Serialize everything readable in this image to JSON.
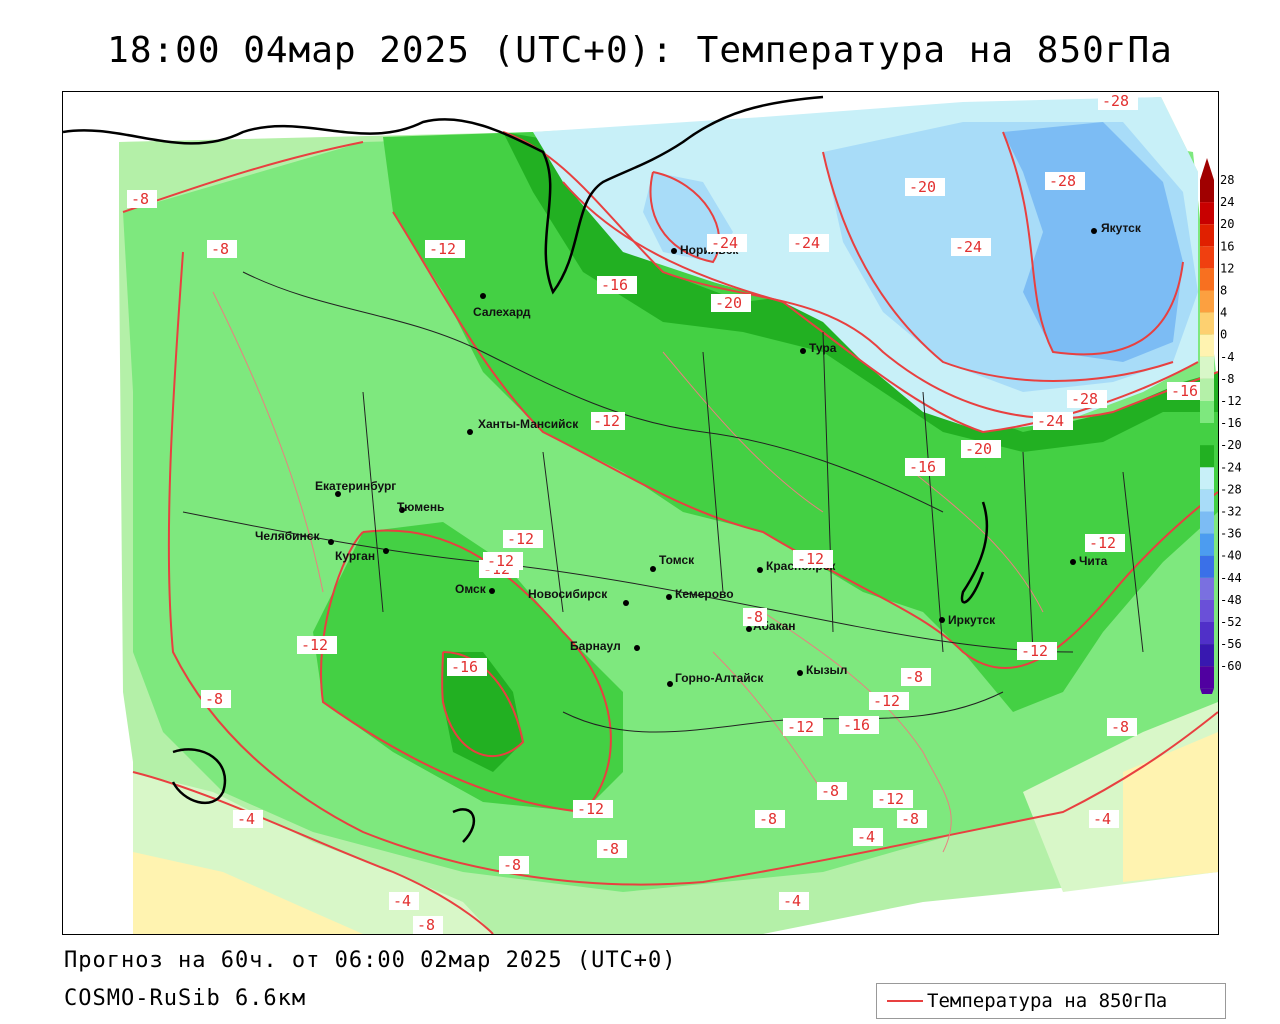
{
  "title": "18:00 04мар 2025 (UTC+0): Температура на 850гПа",
  "footer": {
    "forecast": "Прогноз на 60ч. от 06:00 02мар 2025 (UTC+0)",
    "model": "COSMO-RuSib 6.6км"
  },
  "legend": {
    "label": "Температура на 850гПа",
    "line_color": "#e84040"
  },
  "colorbar": {
    "ticks": [
      "28",
      "24",
      "20",
      "16",
      "12",
      "8",
      "4",
      "0",
      "-4",
      "-8",
      "-12",
      "-16",
      "-20",
      "-24",
      "-28",
      "-32",
      "-36",
      "-40",
      "-44",
      "-48",
      "-52",
      "-56",
      "-60"
    ],
    "colors": [
      "#a00000",
      "#c80000",
      "#e02000",
      "#f04010",
      "#f87020",
      "#fca040",
      "#fdd070",
      "#fff3b0",
      "#d8f7c8",
      "#b4f0a8",
      "#7ee87e",
      "#44d044",
      "#22b022",
      "#c8f0f8",
      "#a8dcf8",
      "#7cbcf4",
      "#4c9cf0",
      "#3a70e8",
      "#7a70e0",
      "#6a50d8",
      "#5030c8",
      "#3818b0",
      "#5000a0"
    ]
  },
  "cities": [
    {
      "name": "Норильск"
    },
    {
      "name": "Якутск"
    },
    {
      "name": "Салехард"
    },
    {
      "name": "Тура"
    },
    {
      "name": "Ханты-Мансийск"
    },
    {
      "name": "Екатеринбург"
    },
    {
      "name": "Тюмень"
    },
    {
      "name": "Челябинск"
    },
    {
      "name": "Курган"
    },
    {
      "name": "Омск"
    },
    {
      "name": "Новосибирск"
    },
    {
      "name": "Томск"
    },
    {
      "name": "Кемерово"
    },
    {
      "name": "Красноярск"
    },
    {
      "name": "Абакан"
    },
    {
      "name": "Барнаул"
    },
    {
      "name": "Горно-Алтайск"
    },
    {
      "name": "Кызыл"
    },
    {
      "name": "Иркутск"
    },
    {
      "name": "Чита"
    }
  ],
  "isotherm_labels": [
    "-28",
    "-28",
    "-20",
    "-24",
    "-24",
    "-24",
    "-20",
    "-16",
    "-12",
    "-8",
    "-8",
    "-12",
    "-28",
    "-16",
    "-20",
    "-16",
    "-24",
    "-12",
    "-12",
    "-12",
    "-12",
    "-12",
    "-12",
    "-16",
    "-8",
    "-12",
    "-12",
    "-16",
    "-12",
    "-8",
    "-8",
    "-12",
    "-4",
    "-8",
    "-8",
    "-4",
    "-8",
    "-8",
    "-4",
    "-4",
    "-8",
    "-4",
    "-8",
    "-12",
    "-8"
  ]
}
